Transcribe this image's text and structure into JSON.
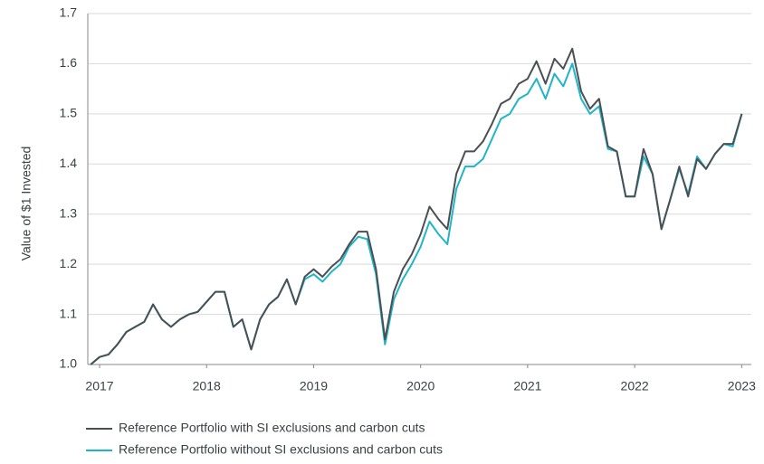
{
  "chart_data": {
    "type": "line",
    "y_label": "Value of $1 Invested",
    "x": [
      2016.917,
      2017,
      2017.083,
      2017.167,
      2017.25,
      2017.333,
      2017.417,
      2017.5,
      2017.583,
      2017.667,
      2017.75,
      2017.833,
      2017.917,
      2018,
      2018.083,
      2018.167,
      2018.25,
      2018.333,
      2018.417,
      2018.5,
      2018.583,
      2018.667,
      2018.75,
      2018.833,
      2018.917,
      2019,
      2019.083,
      2019.167,
      2019.25,
      2019.333,
      2019.417,
      2019.5,
      2019.583,
      2019.667,
      2019.75,
      2019.833,
      2019.917,
      2020,
      2020.083,
      2020.167,
      2020.25,
      2020.333,
      2020.417,
      2020.5,
      2020.583,
      2020.667,
      2020.75,
      2020.833,
      2020.917,
      2021,
      2021.083,
      2021.167,
      2021.25,
      2021.333,
      2021.417,
      2021.5,
      2021.583,
      2021.667,
      2021.75,
      2021.833,
      2021.917,
      2022,
      2022.083,
      2022.167,
      2022.25,
      2022.333,
      2022.417,
      2022.5,
      2022.583,
      2022.667,
      2022.75,
      2022.833,
      2022.917,
      2023
    ],
    "series": [
      {
        "name": "Reference Portfolio with SI exclusions and carbon cuts",
        "color": "#4a4f54",
        "values": [
          1.0,
          1.015,
          1.02,
          1.04,
          1.065,
          1.075,
          1.085,
          1.12,
          1.09,
          1.075,
          1.09,
          1.1,
          1.105,
          1.125,
          1.145,
          1.145,
          1.075,
          1.09,
          1.03,
          1.09,
          1.12,
          1.135,
          1.17,
          1.12,
          1.175,
          1.19,
          1.175,
          1.195,
          1.21,
          1.24,
          1.265,
          1.265,
          1.19,
          1.05,
          1.145,
          1.19,
          1.22,
          1.26,
          1.315,
          1.29,
          1.27,
          1.38,
          1.425,
          1.425,
          1.445,
          1.48,
          1.52,
          1.53,
          1.56,
          1.57,
          1.605,
          1.56,
          1.61,
          1.59,
          1.63,
          1.545,
          1.51,
          1.53,
          1.435,
          1.425,
          1.335,
          1.335,
          1.43,
          1.38,
          1.27,
          1.33,
          1.395,
          1.335,
          1.41,
          1.39,
          1.42,
          1.44,
          1.44,
          1.5
        ]
      },
      {
        "name": "Reference Portfolio without SI exclusions and carbon cuts",
        "color": "#1fb5c9",
        "values": [
          1.0,
          1.015,
          1.02,
          1.04,
          1.065,
          1.075,
          1.085,
          1.12,
          1.09,
          1.075,
          1.09,
          1.1,
          1.105,
          1.125,
          1.145,
          1.145,
          1.075,
          1.09,
          1.03,
          1.09,
          1.12,
          1.135,
          1.17,
          1.12,
          1.17,
          1.18,
          1.165,
          1.185,
          1.2,
          1.235,
          1.255,
          1.25,
          1.18,
          1.04,
          1.13,
          1.17,
          1.2,
          1.235,
          1.285,
          1.26,
          1.24,
          1.35,
          1.395,
          1.395,
          1.41,
          1.45,
          1.49,
          1.5,
          1.53,
          1.54,
          1.57,
          1.53,
          1.58,
          1.555,
          1.6,
          1.53,
          1.5,
          1.515,
          1.43,
          1.425,
          1.335,
          1.335,
          1.415,
          1.38,
          1.27,
          1.33,
          1.39,
          1.34,
          1.415,
          1.39,
          1.42,
          1.44,
          1.435,
          1.5
        ]
      }
    ],
    "xlim": [
      2016.89,
      2023.09
    ],
    "xticks": [
      2017,
      2018,
      2019,
      2020,
      2021,
      2022,
      2023
    ],
    "ylim": [
      1.0,
      1.7
    ],
    "yticks": [
      {
        "value": 1.0,
        "label": "1.0"
      },
      1.1,
      1.2,
      1.3,
      1.4,
      1.5,
      1.6,
      1.7
    ],
    "grid": true
  }
}
